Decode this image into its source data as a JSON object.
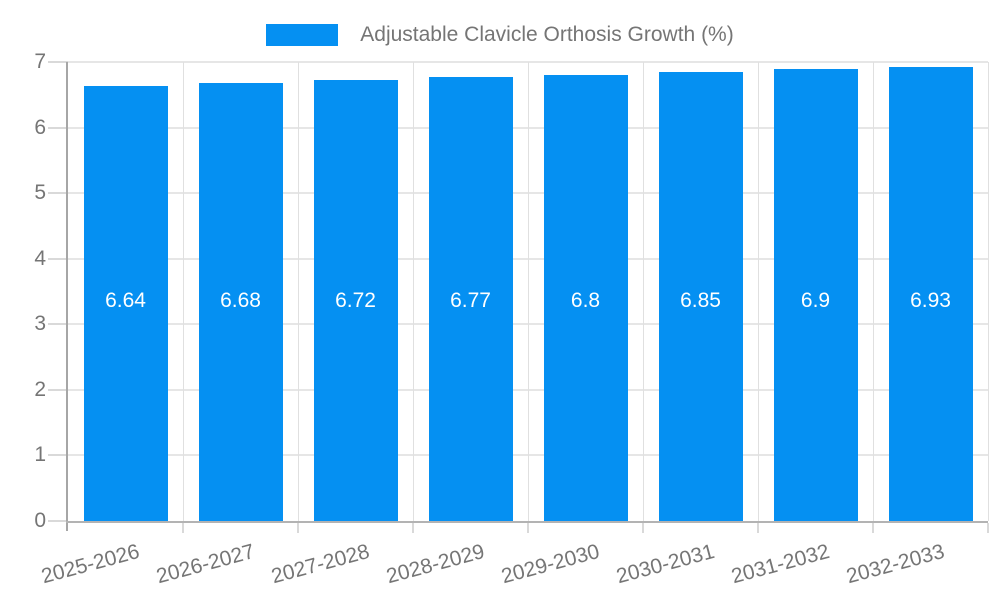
{
  "legend": {
    "label": "Adjustable Clavicle Orthosis Growth (%)"
  },
  "colors": {
    "bar": "#0590F2",
    "grid_horizontal": "#e6e6e6",
    "grid_vertical": "#e0e0e0",
    "tick": "#d9d9d9",
    "x_axis": "#b3b3b3",
    "y_axis": "#a6a6a6",
    "axis_label": "#757575",
    "value_label": "#ffffff",
    "background": "#ffffff"
  },
  "chart_data": {
    "type": "bar",
    "title": "Adjustable Clavicle Orthosis Growth (%)",
    "categories": [
      "2025-2026",
      "2026-2027",
      "2027-2028",
      "2028-2029",
      "2029-2030",
      "2030-2031",
      "2031-2032",
      "2032-2033"
    ],
    "values": [
      6.64,
      6.68,
      6.72,
      6.77,
      6.8,
      6.85,
      6.9,
      6.93
    ],
    "bar_labels": [
      "6.64",
      "6.68",
      "6.72",
      "6.77",
      "6.8",
      "6.85",
      "6.9",
      "6.93"
    ],
    "xlabel": "",
    "ylabel": "",
    "ylim": [
      0,
      7
    ],
    "yticks": [
      0,
      1,
      2,
      3,
      4,
      5,
      6,
      7
    ],
    "ytick_labels": [
      "0",
      "1",
      "2",
      "3",
      "4",
      "5",
      "6",
      "7"
    ],
    "grid": "on",
    "legend_position": "top-center",
    "x_label_rotation_deg": -15
  }
}
